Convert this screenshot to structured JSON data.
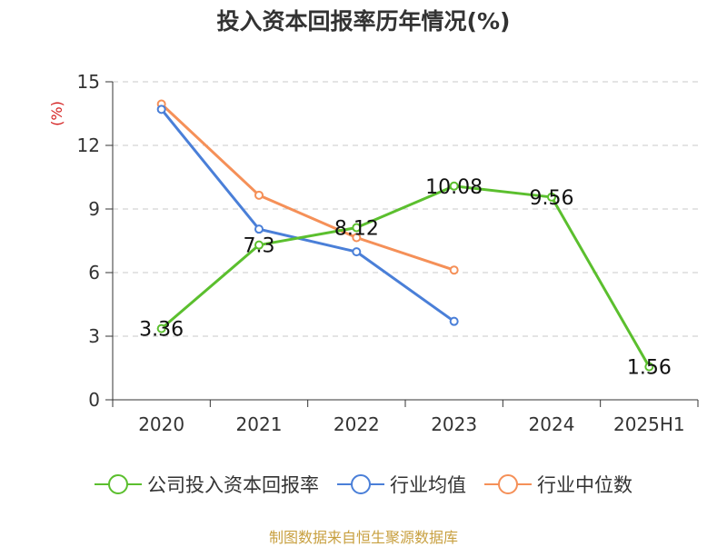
{
  "chart_data": {
    "type": "line",
    "title": "投入资本回报率历年情况(%)",
    "ylabel": "(%)",
    "xlabel": "",
    "categories": [
      "2020",
      "2021",
      "2022",
      "2023",
      "2024",
      "2025H1"
    ],
    "y_ticks": [
      "0",
      "3",
      "6",
      "9",
      "12",
      "15"
    ],
    "ylim": [
      0,
      15
    ],
    "grid": true,
    "legend_position": "bottom",
    "series": [
      {
        "name": "公司投入资本回报率",
        "color": "#5bbf2e",
        "values": [
          3.36,
          7.3,
          8.12,
          10.08,
          9.56,
          1.56
        ],
        "labels": [
          "3.36",
          "7.3",
          "8.12",
          "10.08",
          "9.56",
          "1.56"
        ]
      },
      {
        "name": "行业均值",
        "color": "#4a7fd8",
        "values": [
          13.7,
          8.05,
          6.98,
          3.7,
          null,
          null
        ]
      },
      {
        "name": "行业中位数",
        "color": "#f59058",
        "values": [
          13.95,
          9.65,
          7.65,
          6.12,
          null,
          null
        ]
      }
    ]
  },
  "source": "制图数据来自恒生聚源数据库"
}
